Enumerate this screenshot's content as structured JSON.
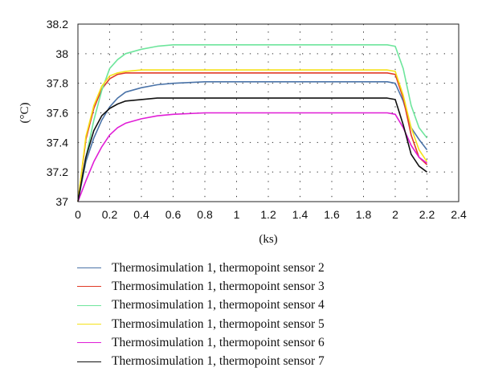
{
  "chart_data": {
    "type": "line",
    "title": "",
    "xlabel": "(ks)",
    "ylabel": "(°C)",
    "xlim": [
      0,
      2.4
    ],
    "ylim": [
      37,
      38.2
    ],
    "xticks": [
      "0",
      "0.2",
      "0.4",
      "0.6",
      "0.8",
      "1",
      "1.2",
      "1.4",
      "1.6",
      "1.8",
      "2",
      "2.2",
      "2.4"
    ],
    "yticks": [
      "37",
      "37.2",
      "37.4",
      "37.6",
      "37.8",
      "38",
      "38.2"
    ],
    "grid": true,
    "legend_position": "bottom",
    "x": [
      0,
      0.05,
      0.1,
      0.15,
      0.2,
      0.25,
      0.3,
      0.4,
      0.5,
      0.6,
      0.8,
      1.0,
      1.2,
      1.4,
      1.6,
      1.8,
      1.95,
      2.0,
      2.05,
      2.1,
      2.15,
      2.2
    ],
    "series": [
      {
        "name": "Thermosimulation 1, thermopoint sensor 2",
        "color": "#4a73a8",
        "values": [
          37,
          37.27,
          37.43,
          37.55,
          37.64,
          37.7,
          37.74,
          37.77,
          37.79,
          37.8,
          37.81,
          37.81,
          37.81,
          37.81,
          37.81,
          37.81,
          37.81,
          37.8,
          37.68,
          37.5,
          37.42,
          37.35
        ]
      },
      {
        "name": "Thermosimulation 1, thermopoint sensor 3",
        "color": "#e03a26",
        "values": [
          37,
          37.42,
          37.63,
          37.76,
          37.83,
          37.86,
          37.87,
          37.87,
          37.87,
          37.87,
          37.87,
          37.87,
          37.87,
          37.87,
          37.87,
          37.87,
          37.87,
          37.86,
          37.7,
          37.45,
          37.3,
          37.25
        ]
      },
      {
        "name": "Thermosimulation 1, thermopoint sensor 4",
        "color": "#6ee59c",
        "values": [
          37,
          37.3,
          37.55,
          37.75,
          37.9,
          37.96,
          38.0,
          38.03,
          38.05,
          38.06,
          38.06,
          38.06,
          38.06,
          38.06,
          38.06,
          38.06,
          38.06,
          38.05,
          37.9,
          37.65,
          37.5,
          37.43
        ]
      },
      {
        "name": "Thermosimulation 1, thermopoint sensor 5",
        "color": "#f5e21a",
        "values": [
          37,
          37.44,
          37.65,
          37.78,
          37.85,
          37.87,
          37.88,
          37.89,
          37.89,
          37.89,
          37.89,
          37.89,
          37.89,
          37.89,
          37.89,
          37.89,
          37.89,
          37.88,
          37.72,
          37.5,
          37.35,
          37.27
        ]
      },
      {
        "name": "Thermosimulation 1, thermopoint sensor 6",
        "color": "#e01ed6",
        "values": [
          37,
          37.14,
          37.27,
          37.37,
          37.45,
          37.5,
          37.53,
          37.56,
          37.58,
          37.59,
          37.6,
          37.6,
          37.6,
          37.6,
          37.6,
          37.6,
          37.6,
          37.59,
          37.5,
          37.38,
          37.3,
          37.26
        ]
      },
      {
        "name": "Thermosimulation 1, thermopoint sensor 7",
        "color": "#111111",
        "values": [
          37,
          37.3,
          37.48,
          37.58,
          37.63,
          37.66,
          37.68,
          37.69,
          37.7,
          37.7,
          37.7,
          37.7,
          37.7,
          37.7,
          37.7,
          37.7,
          37.7,
          37.69,
          37.52,
          37.32,
          37.24,
          37.2
        ]
      }
    ]
  }
}
